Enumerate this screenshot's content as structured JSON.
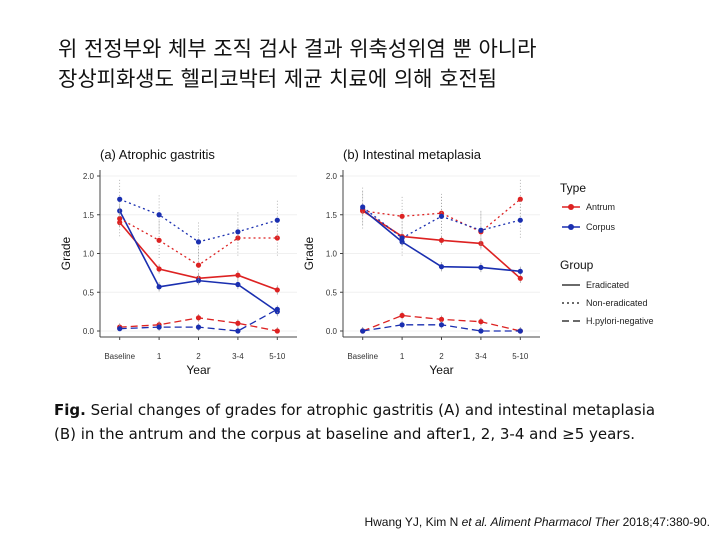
{
  "slide": {
    "title_line1": "위 전정부와 체부 조직 검사 결과 위축성위염 뿐 아니라",
    "title_line2": "장상피화생도 헬리코박터 제균 치료에 의해 호전됨",
    "caption_label": "Fig.",
    "caption_text": "Serial changes of grades for atrophic gastritis (A) and intestinal metaplasia (B) in the antrum and the corpus at baseline and after1, 2, 3-4 and ≥5 years.",
    "citation_pre": "Hwang YJ, Kim N",
    "citation_italic": "et al. Aliment Pharmacol Ther",
    "citation_post": "2018;47:380-90."
  },
  "colors": {
    "antrum": "#dd2222",
    "corpus": "#1a2fb0",
    "axis": "#444444",
    "grid": "#f0f0f0"
  },
  "chart_data": [
    {
      "type": "line",
      "title": "(a) Atrophic gastritis",
      "xlabel": "Year",
      "ylabel": "Grade",
      "categories": [
        "Baseline",
        "1",
        "2",
        "3-4",
        "5-10"
      ],
      "ylim": [
        0,
        2.0
      ],
      "yticks": [
        "0.0",
        "0.5",
        "1.0",
        "1.5",
        "2.0"
      ],
      "series": [
        {
          "name": "Antrum Eradicated",
          "type": "Antrum",
          "group": "Eradicated",
          "values": [
            1.4,
            0.8,
            0.68,
            0.72,
            0.53
          ]
        },
        {
          "name": "Corpus Eradicated",
          "type": "Corpus",
          "group": "Eradicated",
          "values": [
            1.55,
            0.57,
            0.65,
            0.6,
            0.25
          ]
        },
        {
          "name": "Antrum Non-eradicated",
          "type": "Antrum",
          "group": "Non-eradicated",
          "values": [
            1.45,
            1.17,
            0.85,
            1.2,
            1.2
          ]
        },
        {
          "name": "Corpus Non-eradicated",
          "type": "Corpus",
          "group": "Non-eradicated",
          "values": [
            1.7,
            1.5,
            1.15,
            1.28,
            1.43
          ]
        },
        {
          "name": "Antrum H.pylori-negative",
          "type": "Antrum",
          "group": "H.pylori-negative",
          "values": [
            0.05,
            0.08,
            0.17,
            0.1,
            0.0
          ]
        },
        {
          "name": "Corpus H.pylori-negative",
          "type": "Corpus",
          "group": "H.pylori-negative",
          "values": [
            0.03,
            0.05,
            0.05,
            0.0,
            0.28
          ]
        }
      ]
    },
    {
      "type": "line",
      "title": "(b) Intestinal metaplasia",
      "xlabel": "Year",
      "ylabel": "Grade",
      "categories": [
        "Baseline",
        "1",
        "2",
        "3-4",
        "5-10"
      ],
      "ylim": [
        0,
        2.0
      ],
      "yticks": [
        "0.0",
        "0.5",
        "1.0",
        "1.5",
        "2.0"
      ],
      "series": [
        {
          "name": "Antrum Eradicated",
          "type": "Antrum",
          "group": "Eradicated",
          "values": [
            1.55,
            1.22,
            1.17,
            1.13,
            0.68
          ]
        },
        {
          "name": "Corpus Eradicated",
          "type": "Corpus",
          "group": "Eradicated",
          "values": [
            1.57,
            1.15,
            0.83,
            0.82,
            0.77
          ]
        },
        {
          "name": "Antrum Non-eradicated",
          "type": "Antrum",
          "group": "Non-eradicated",
          "values": [
            1.55,
            1.48,
            1.52,
            1.28,
            1.7
          ]
        },
        {
          "name": "Corpus Non-eradicated",
          "type": "Corpus",
          "group": "Non-eradicated",
          "values": [
            1.6,
            1.2,
            1.48,
            1.3,
            1.43
          ]
        },
        {
          "name": "Antrum H.pylori-negative",
          "type": "Antrum",
          "group": "H.pylori-negative",
          "values": [
            0.0,
            0.2,
            0.15,
            0.12,
            0.0
          ]
        },
        {
          "name": "Corpus H.pylori-negative",
          "type": "Corpus",
          "group": "H.pylori-negative",
          "values": [
            0.0,
            0.08,
            0.08,
            0.0,
            0.0
          ]
        }
      ]
    }
  ],
  "legend": {
    "type_title": "Type",
    "type_items": [
      "Antrum",
      "Corpus"
    ],
    "group_title": "Group",
    "group_items": [
      "Eradicated",
      "Non-eradicated",
      "H.pylori-negative"
    ]
  }
}
